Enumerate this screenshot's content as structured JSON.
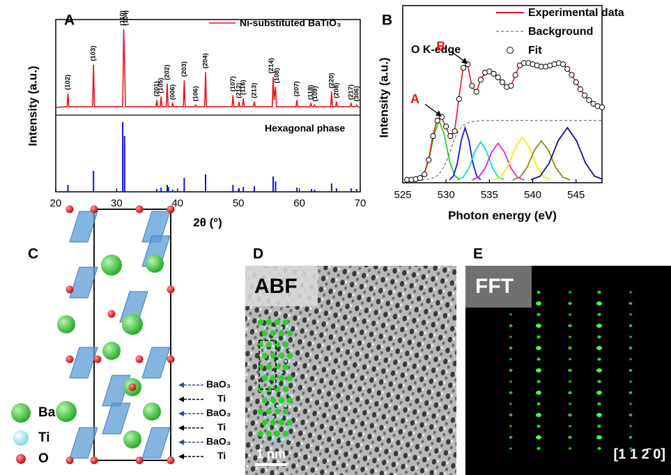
{
  "chart_data": [
    {
      "type": "line",
      "label": "A",
      "xlabel": "2θ (°)",
      "ylabel": "Intensity (a.u.)",
      "xlim": [
        20,
        70
      ],
      "xticks": [
        20,
        30,
        40,
        50,
        60,
        70
      ],
      "ylim": [
        0,
        110
      ],
      "series": [
        {
          "name": "Ni-substituted BaTiO₃",
          "color": "#e8141c",
          "x": [
            20,
            21.85,
            22.0,
            22.15,
            26.05,
            26.2,
            26.35,
            31.0,
            31.15,
            31.3,
            31.45,
            36.45,
            36.6,
            36.75,
            37.15,
            37.3,
            37.45,
            38.15,
            38.3,
            38.45,
            39.05,
            39.2,
            39.35,
            40.95,
            41.1,
            41.25,
            42.85,
            43.0,
            43.15,
            44.45,
            44.6,
            44.75,
            48.95,
            49.1,
            49.25,
            49.95,
            50.1,
            50.25,
            50.65,
            50.8,
            50.95,
            52.45,
            52.6,
            52.75,
            55.55,
            55.7,
            55.85,
            56.1,
            56.25,
            59.45,
            59.6,
            59.75,
            61.75,
            61.9,
            62.05,
            62.35,
            62.5,
            62.65,
            65.15,
            65.3,
            65.45,
            65.95,
            66.1,
            66.25,
            68.35,
            68.5,
            68.65,
            69.25,
            69.4,
            69.55,
            70
          ],
          "values": [
            5,
            6,
            22,
            6,
            6,
            57,
            6,
            6,
            100,
            60,
            6,
            6,
            14,
            6,
            6,
            18,
            6,
            6,
            34,
            6,
            6,
            10,
            6,
            6,
            38,
            6,
            6,
            8,
            6,
            6,
            48,
            6,
            6,
            20,
            6,
            6,
            12,
            6,
            6,
            16,
            6,
            6,
            12,
            6,
            6,
            42,
            14,
            30,
            6,
            6,
            14,
            6,
            6,
            10,
            6,
            6,
            8,
            6,
            6,
            24,
            6,
            6,
            12,
            6,
            6,
            10,
            6,
            6,
            8,
            6,
            5
          ]
        }
      ],
      "reference": {
        "name": "Hexagonal phase",
        "color": "#1010e8",
        "ylim": [
          0,
          100
        ],
        "x": [
          22.0,
          26.2,
          31.0,
          31.3,
          36.6,
          37.3,
          38.3,
          38.5,
          39.2,
          41.1,
          44.6,
          49.1,
          50.1,
          50.8,
          52.6,
          55.7,
          56.1,
          59.6,
          62.0,
          62.5,
          65.3,
          66.1,
          68.5,
          69.4
        ],
        "values": [
          10,
          30,
          100,
          80,
          4,
          6,
          10,
          7,
          3,
          20,
          25,
          10,
          5,
          7,
          8,
          22,
          15,
          6,
          4,
          3,
          12,
          5,
          5,
          4
        ]
      },
      "peak_labels": [
        "(102)",
        "(103)",
        "(110)",
        "(104)",
        "(201)",
        "(105)",
        "(202)",
        "(006)",
        "(203)",
        "(106)",
        "(204)",
        "(107)",
        "(212)",
        "(116)",
        "(213)",
        "(214)",
        "(108)",
        "(207)",
        "(118)",
        "(109)",
        "(220)",
        "(208)",
        "(217)",
        "(306)"
      ],
      "peak_x": [
        22.0,
        26.2,
        31.0,
        31.5,
        36.6,
        37.3,
        38.3,
        39.2,
        41.1,
        43.0,
        44.6,
        49.1,
        50.1,
        50.8,
        52.6,
        55.4,
        56.3,
        59.6,
        61.9,
        62.6,
        65.3,
        66.1,
        68.5,
        69.4
      ]
    },
    {
      "type": "line",
      "label": "B",
      "annotation": "O K-edge",
      "xlabel": "Photon energy (eV)",
      "ylabel": "Intensity (a.u.)",
      "xlim": [
        525,
        548
      ],
      "xticks": [
        525,
        530,
        535,
        540,
        545
      ],
      "ylim": [
        -2,
        146
      ],
      "x": [
        525.5,
        526,
        526.5,
        527,
        527.5,
        528,
        528.5,
        529,
        529.5,
        530,
        530.5,
        531,
        531.5,
        532,
        532.5,
        533,
        533.5,
        534,
        534.5,
        535,
        535.5,
        536,
        536.5,
        537,
        537.5,
        538,
        538.5,
        539,
        539.5,
        540,
        540.5,
        541,
        541.5,
        542,
        542.5,
        543,
        543.5,
        544,
        544.5,
        545,
        545.5,
        546,
        546.5,
        547,
        547.5,
        548
      ],
      "series": [
        {
          "name": "Experimental data",
          "color": "#e8141c",
          "style": "line",
          "values": [
            0.5,
            0.5,
            1,
            2,
            6,
            18,
            38,
            51,
            52,
            44,
            36,
            42,
            70,
            95,
            96,
            78,
            74,
            84,
            90,
            91,
            89,
            86,
            82,
            78,
            79,
            88,
            96,
            98,
            98,
            97,
            96,
            95,
            95,
            96,
            97,
            98,
            97,
            93,
            88,
            82,
            76,
            71,
            67,
            64,
            62,
            61
          ]
        },
        {
          "name": "Background",
          "color": "#555555",
          "style": "dashed",
          "values": [
            0,
            0,
            0,
            0,
            0.5,
            1,
            2,
            4,
            8,
            15,
            25,
            35,
            42,
            46,
            48,
            49,
            49.5,
            50,
            50,
            50,
            50,
            50,
            50,
            50,
            50,
            50,
            50,
            50,
            50,
            50,
            50,
            50,
            50,
            50,
            50,
            50,
            50,
            50,
            50,
            50,
            50,
            50,
            50,
            50,
            50,
            50
          ]
        },
        {
          "name": "Fit",
          "color": "#000000",
          "style": "circles",
          "values": [
            0.5,
            0.5,
            1,
            2,
            5,
            17,
            37,
            50,
            53,
            45,
            37,
            41,
            68,
            94,
            97,
            79,
            74,
            84,
            90,
            91,
            89,
            86,
            82,
            78,
            79,
            88,
            96,
            98,
            98,
            97,
            96,
            95,
            95,
            96,
            97,
            98,
            97,
            93,
            88,
            82,
            76,
            71,
            67,
            64,
            62,
            61
          ]
        }
      ],
      "components": [
        {
          "color": "#22d022",
          "x": [
            526.8,
            527.4,
            528.0,
            528.6,
            529.2,
            529.8,
            530.4,
            531.0,
            531.6
          ],
          "values": [
            0.6,
            4,
            16.3,
            37.8,
            50,
            37.8,
            16.3,
            4,
            0.6
          ]
        },
        {
          "color": "#1515e0",
          "x": [
            530.4,
            530.85,
            531.3,
            531.75,
            532.2,
            532.65,
            533.1,
            533.55,
            534.0
          ],
          "values": [
            0.5,
            3.5,
            14.3,
            33.2,
            44,
            33.2,
            14.3,
            3.5,
            0.5
          ]
        },
        {
          "color": "#10d8e0",
          "x": [
            531.3,
            531.98,
            532.65,
            533.33,
            534,
            534.68,
            535.35,
            536.03,
            536.7
          ],
          "values": [
            0.4,
            2.6,
            10.4,
            24.2,
            32,
            24.2,
            10.4,
            2.6,
            0.4
          ]
        },
        {
          "color": "#e020d8",
          "x": [
            533,
            533.75,
            534.5,
            535.25,
            536,
            536.75,
            537.5,
            538.25,
            539
          ],
          "values": [
            0.3,
            2.5,
            10.1,
            23.4,
            31,
            23.4,
            10.1,
            2.5,
            0.3
          ]
        },
        {
          "color": "#f0f000",
          "x": [
            535.5,
            536.33,
            537.15,
            537.98,
            538.8,
            539.63,
            540.45,
            541.28,
            542.1
          ],
          "values": [
            0.4,
            2.9,
            11.7,
            27.2,
            36,
            27.2,
            11.7,
            2.9,
            0.4
          ]
        },
        {
          "color": "#8a8a10",
          "x": [
            537.7,
            538.53,
            539.35,
            540.18,
            541,
            541.83,
            542.65,
            543.48,
            544.3
          ],
          "values": [
            0.4,
            2.6,
            10.7,
            24.9,
            33,
            24.9,
            10.7,
            2.6,
            0.4
          ]
        },
        {
          "color": "#101080",
          "x": [
            539.8,
            540.85,
            541.9,
            542.95,
            544,
            545.05,
            546.1,
            547.15,
            548.2
          ],
          "values": [
            0.5,
            3.5,
            14.3,
            33.2,
            44,
            33.2,
            14.3,
            3.5,
            0.5
          ]
        }
      ],
      "peak_labels": [
        "A",
        "B"
      ],
      "peak_x": [
        529.5,
        532.5
      ]
    }
  ],
  "panels": {
    "C": {
      "label": "C",
      "legend": [
        "Ba",
        "Ti",
        "O"
      ],
      "layer_labels": [
        "BaO₃",
        "Ti",
        "BaO₃",
        "Ti",
        "BaO₃",
        "Ti"
      ]
    },
    "D": {
      "label": "D",
      "title": "ABF",
      "scale_bar": "1 nm"
    },
    "E": {
      "label": "E",
      "title": "FFT",
      "zone_axis": "[1 1 2̄ 0]"
    }
  }
}
